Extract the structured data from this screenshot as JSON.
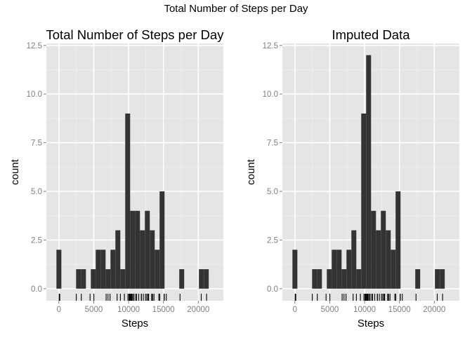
{
  "page_title": "Total Number of Steps per Day",
  "colors": {
    "panel_bg": "#e5e5e5",
    "grid_major": "#ffffff",
    "grid_minor": "#f0f0f0",
    "bar_fill": "#333333",
    "rug": "#000000",
    "tick_text": "#7f7f7f",
    "text": "#000000"
  },
  "chart_data": [
    {
      "type": "bar",
      "title": "Total Number of Steps per Day",
      "xlabel": "Steps",
      "ylabel": "count",
      "xlim": [
        -1800,
        23600
      ],
      "ylim": [
        -0.62,
        12.6
      ],
      "x_ticks": [
        0,
        5000,
        10000,
        15000,
        20000
      ],
      "x_tick_labels": [
        "0",
        "5000",
        "10000",
        "15000",
        "20000"
      ],
      "y_ticks": [
        0,
        2.5,
        5,
        7.5,
        10,
        12.5
      ],
      "y_tick_labels": [
        "0.0",
        "2.5",
        "5.0",
        "7.5",
        "10.0",
        "12.5"
      ],
      "grid": true,
      "bin_width": 705,
      "bins": [
        {
          "x": 0,
          "count": 2
        },
        {
          "x": 2820,
          "count": 1
        },
        {
          "x": 3525,
          "count": 1
        },
        {
          "x": 4935,
          "count": 1
        },
        {
          "x": 5640,
          "count": 2
        },
        {
          "x": 6345,
          "count": 2
        },
        {
          "x": 7050,
          "count": 1
        },
        {
          "x": 7755,
          "count": 2
        },
        {
          "x": 8460,
          "count": 3
        },
        {
          "x": 9165,
          "count": 1
        },
        {
          "x": 9870,
          "count": 9
        },
        {
          "x": 10575,
          "count": 4
        },
        {
          "x": 11280,
          "count": 4
        },
        {
          "x": 11985,
          "count": 3
        },
        {
          "x": 12690,
          "count": 4
        },
        {
          "x": 13395,
          "count": 3
        },
        {
          "x": 14100,
          "count": 2
        },
        {
          "x": 14805,
          "count": 5
        },
        {
          "x": 17625,
          "count": 1
        },
        {
          "x": 20445,
          "count": 1
        },
        {
          "x": 21150,
          "count": 1
        }
      ],
      "rug": [
        41,
        126,
        2492,
        3219,
        4472,
        5018,
        6778,
        7047,
        7336,
        8355,
        8821,
        9398,
        9900,
        10056,
        10139,
        10183,
        10304,
        10395,
        10439,
        10571,
        10600,
        10765,
        11015,
        11162,
        11458,
        11829,
        11834,
        12116,
        12426,
        12608,
        12787,
        12811,
        12883,
        13294,
        13452,
        13460,
        13646,
        14339,
        14478,
        15084,
        15098,
        15110,
        15414,
        17382,
        20427,
        21194
      ]
    },
    {
      "type": "bar",
      "title": "Imputed Data",
      "xlabel": "Steps",
      "ylabel": "count",
      "xlim": [
        -1800,
        23600
      ],
      "ylim": [
        -0.62,
        12.6
      ],
      "x_ticks": [
        0,
        5000,
        10000,
        15000,
        20000
      ],
      "x_tick_labels": [
        "0",
        "5000",
        "10000",
        "15000",
        "20000"
      ],
      "y_ticks": [
        0,
        2.5,
        5,
        7.5,
        10,
        12.5
      ],
      "y_tick_labels": [
        "0.0",
        "2.5",
        "5.0",
        "7.5",
        "10.0",
        "12.5"
      ],
      "grid": true,
      "bin_width": 705,
      "bins": [
        {
          "x": 0,
          "count": 2
        },
        {
          "x": 2820,
          "count": 1
        },
        {
          "x": 3525,
          "count": 1
        },
        {
          "x": 4935,
          "count": 1
        },
        {
          "x": 5640,
          "count": 2
        },
        {
          "x": 6345,
          "count": 2
        },
        {
          "x": 7050,
          "count": 1
        },
        {
          "x": 7755,
          "count": 2
        },
        {
          "x": 8460,
          "count": 3
        },
        {
          "x": 9165,
          "count": 1
        },
        {
          "x": 9870,
          "count": 9
        },
        {
          "x": 10575,
          "count": 12
        },
        {
          "x": 11280,
          "count": 4
        },
        {
          "x": 11985,
          "count": 3
        },
        {
          "x": 12690,
          "count": 4
        },
        {
          "x": 13395,
          "count": 3
        },
        {
          "x": 14100,
          "count": 2
        },
        {
          "x": 14805,
          "count": 5
        },
        {
          "x": 17625,
          "count": 1
        },
        {
          "x": 20445,
          "count": 1
        },
        {
          "x": 21150,
          "count": 1
        }
      ],
      "rug": [
        41,
        126,
        2492,
        3219,
        4472,
        5018,
        6778,
        7047,
        7336,
        8355,
        8821,
        9398,
        9900,
        10056,
        10139,
        10183,
        10304,
        10395,
        10439,
        10571,
        10600,
        10766,
        10765,
        11015,
        11162,
        11458,
        11829,
        11834,
        12116,
        12426,
        12608,
        12787,
        12811,
        12883,
        13294,
        13452,
        13460,
        13646,
        14339,
        14478,
        15084,
        15098,
        15110,
        15414,
        17382,
        20427,
        21194
      ]
    }
  ]
}
